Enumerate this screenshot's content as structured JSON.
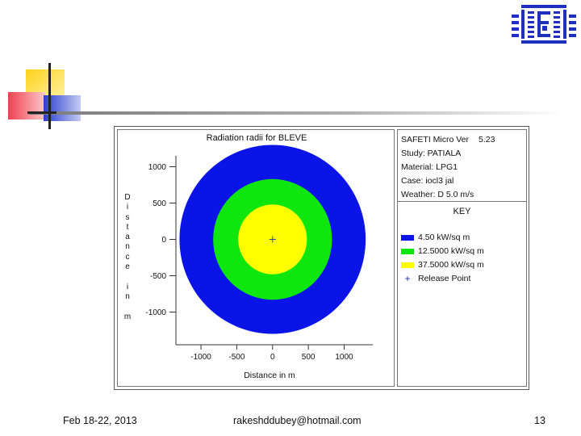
{
  "chart_data": {
    "type": "contour",
    "title": "Radiation radii for BLEVE",
    "xlabel": "Distance in m",
    "ylabel": "Distance in m",
    "xlim": [
      -1350,
      1400
    ],
    "ylim": [
      -1450,
      1150
    ],
    "x_ticks": [
      -1000,
      -500,
      0,
      500,
      1000
    ],
    "y_ticks": [
      1000,
      500,
      0,
      -500,
      -1000
    ],
    "series": [
      {
        "name": "4.50 kW/sq m",
        "radius": 1300,
        "color": "#0a14e6"
      },
      {
        "name": "12.5000 kW/sq m",
        "radius": 830,
        "color": "#0ee60e"
      },
      {
        "name": "37.5000 kW/sq m",
        "radius": 480,
        "color": "#ffff00"
      }
    ],
    "release_point": {
      "name": "Release Point",
      "x": 0,
      "y": 0
    },
    "grid": false,
    "legend_position": "right"
  },
  "info": {
    "program": "SAFETI Micro Ver",
    "version": "5.23",
    "study": "Study: PATIALA",
    "material": "Material: LPG1",
    "case": "Case: iocl3 jal",
    "weather": "Weather: D 5.0 m/s",
    "key_title": "KEY",
    "release_label": "Release Point"
  },
  "footer": {
    "date": "Feb 18-22, 2013",
    "email": "rakeshddubey@hotmail.com",
    "page_number": "13"
  },
  "colors": {
    "accent_blue": "#1f2fbf",
    "deco_yellow": "#ffd21a",
    "deco_red": "#f04050",
    "deco_blue": "#2a3ed0"
  },
  "icons": [
    "institution-logo-icon",
    "decorative-squares-icon",
    "release-point-plus-icon"
  ]
}
